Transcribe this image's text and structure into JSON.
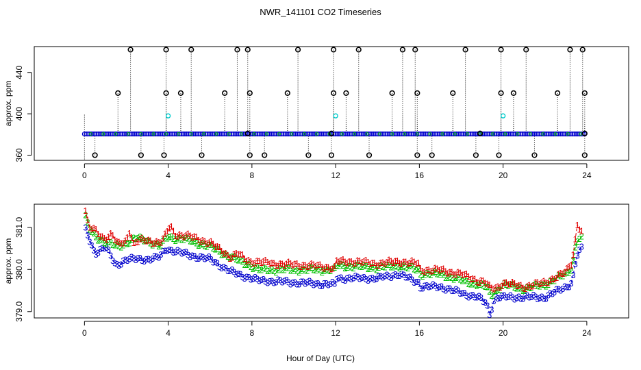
{
  "colors": {
    "series1": "#e00000",
    "series2": "#00c000",
    "series3": "#0000cc",
    "flagged": "#000000",
    "cyan": "#00cccc",
    "frame": "#000000"
  },
  "chart_data": [
    {
      "type": "scatter",
      "title": "NWR_141101  CO2 Timeseries",
      "xlabel": "",
      "ylabel": "approx. ppm",
      "xlim": [
        -2.4,
        26.0
      ],
      "ylim": [
        355,
        465
      ],
      "xticks": [
        0,
        4,
        8,
        12,
        16,
        20,
        24
      ],
      "yticks": [
        360,
        400,
        440
      ],
      "baseline": 380.5,
      "baseline_blue_count": 290,
      "high_flags": [
        {
          "x": 2.2,
          "y": 462
        },
        {
          "x": 3.9,
          "y": 462
        },
        {
          "x": 5.1,
          "y": 462
        },
        {
          "x": 7.3,
          "y": 462
        },
        {
          "x": 7.8,
          "y": 462
        },
        {
          "x": 10.2,
          "y": 462
        },
        {
          "x": 11.9,
          "y": 462
        },
        {
          "x": 13.1,
          "y": 462
        },
        {
          "x": 15.2,
          "y": 462
        },
        {
          "x": 15.8,
          "y": 462
        },
        {
          "x": 18.2,
          "y": 462
        },
        {
          "x": 19.9,
          "y": 462
        },
        {
          "x": 21.1,
          "y": 462
        },
        {
          "x": 23.2,
          "y": 462
        },
        {
          "x": 23.8,
          "y": 462
        },
        {
          "x": 1.6,
          "y": 420
        },
        {
          "x": 3.9,
          "y": 420
        },
        {
          "x": 4.6,
          "y": 420
        },
        {
          "x": 6.7,
          "y": 420
        },
        {
          "x": 7.9,
          "y": 420
        },
        {
          "x": 9.7,
          "y": 420
        },
        {
          "x": 11.9,
          "y": 420
        },
        {
          "x": 12.5,
          "y": 420
        },
        {
          "x": 14.7,
          "y": 420
        },
        {
          "x": 15.9,
          "y": 420
        },
        {
          "x": 17.6,
          "y": 420
        },
        {
          "x": 19.9,
          "y": 420
        },
        {
          "x": 20.5,
          "y": 420
        },
        {
          "x": 22.6,
          "y": 420
        },
        {
          "x": 23.9,
          "y": 420
        }
      ],
      "low_flags": [
        {
          "x": 0.5,
          "y": 360
        },
        {
          "x": 2.7,
          "y": 360
        },
        {
          "x": 3.8,
          "y": 360
        },
        {
          "x": 5.6,
          "y": 360
        },
        {
          "x": 7.9,
          "y": 360
        },
        {
          "x": 8.6,
          "y": 360
        },
        {
          "x": 10.7,
          "y": 360
        },
        {
          "x": 11.8,
          "y": 360
        },
        {
          "x": 13.6,
          "y": 360
        },
        {
          "x": 15.9,
          "y": 360
        },
        {
          "x": 16.6,
          "y": 360
        },
        {
          "x": 18.7,
          "y": 360
        },
        {
          "x": 19.8,
          "y": 360
        },
        {
          "x": 21.5,
          "y": 360
        },
        {
          "x": 23.9,
          "y": 360
        }
      ],
      "mid_flags": [
        {
          "x": 7.8,
          "y": 381
        },
        {
          "x": 11.8,
          "y": 381
        },
        {
          "x": 18.9,
          "y": 381
        },
        {
          "x": 23.9,
          "y": 381
        }
      ],
      "cyan_points": [
        {
          "x": 4.0,
          "y": 398
        },
        {
          "x": 12.0,
          "y": 398
        },
        {
          "x": 20.0,
          "y": 398
        }
      ]
    },
    {
      "type": "line",
      "title": "",
      "xlabel": "Hour of Day (UTC)",
      "ylabel": "approx. ppm",
      "xlim": [
        -2.4,
        26.0
      ],
      "ylim": [
        378.85,
        381.55
      ],
      "xticks": [
        0,
        4,
        8,
        12,
        16,
        20,
        24
      ],
      "yticks": [
        379.0,
        380.0,
        381.0
      ],
      "ytick_labels": [
        "379.0",
        "380.0",
        "381.0"
      ],
      "series": [
        {
          "name": "1",
          "label": "1",
          "anchors": [
            [
              0.05,
              381.4
            ],
            [
              0.2,
              381.0
            ],
            [
              0.5,
              380.95
            ],
            [
              0.8,
              380.8
            ],
            [
              1.0,
              380.75
            ],
            [
              1.3,
              380.85
            ],
            [
              1.6,
              380.6
            ],
            [
              2.0,
              380.7
            ],
            [
              2.2,
              381.0
            ],
            [
              2.3,
              380.6
            ],
            [
              2.6,
              380.7
            ],
            [
              3.0,
              380.7
            ],
            [
              3.6,
              380.65
            ],
            [
              3.8,
              380.75
            ],
            [
              4.1,
              381.05
            ],
            [
              4.3,
              380.85
            ],
            [
              5.0,
              380.8
            ],
            [
              6.0,
              380.65
            ],
            [
              7.0,
              380.3
            ],
            [
              7.3,
              380.4
            ],
            [
              7.7,
              380.25
            ],
            [
              7.95,
              380.2
            ],
            [
              8.3,
              380.2
            ],
            [
              9.0,
              380.15
            ],
            [
              11.0,
              380.1
            ],
            [
              11.95,
              380.05
            ],
            [
              12.05,
              380.2
            ],
            [
              13.0,
              380.2
            ],
            [
              14.0,
              380.15
            ],
            [
              15.0,
              380.2
            ],
            [
              15.95,
              380.15
            ],
            [
              16.05,
              380.0
            ],
            [
              17.0,
              380.0
            ],
            [
              18.0,
              379.9
            ],
            [
              18.8,
              379.75
            ],
            [
              19.2,
              379.7
            ],
            [
              19.4,
              379.55
            ],
            [
              19.8,
              379.6
            ],
            [
              20.0,
              379.7
            ],
            [
              21.0,
              379.6
            ],
            [
              22.0,
              379.7
            ],
            [
              23.0,
              379.95
            ],
            [
              23.3,
              380.2
            ],
            [
              23.5,
              380.9
            ],
            [
              23.55,
              381.1
            ],
            [
              23.8,
              380.85
            ]
          ]
        },
        {
          "name": "2",
          "label": "2",
          "anchors": [
            [
              0.05,
              381.25
            ],
            [
              0.2,
              381.0
            ],
            [
              0.5,
              380.8
            ],
            [
              1.0,
              380.65
            ],
            [
              1.6,
              380.55
            ],
            [
              2.5,
              380.75
            ],
            [
              3.0,
              380.7
            ],
            [
              3.6,
              380.55
            ],
            [
              4.0,
              380.8
            ],
            [
              4.3,
              380.75
            ],
            [
              5.0,
              380.7
            ],
            [
              6.0,
              380.55
            ],
            [
              7.0,
              380.3
            ],
            [
              7.95,
              380.1
            ],
            [
              8.3,
              380.0
            ],
            [
              10.0,
              380.0
            ],
            [
              11.95,
              380.0
            ],
            [
              12.05,
              380.1
            ],
            [
              14.0,
              380.05
            ],
            [
              15.0,
              380.1
            ],
            [
              15.95,
              380.0
            ],
            [
              16.05,
              379.9
            ],
            [
              17.0,
              379.9
            ],
            [
              18.0,
              379.75
            ],
            [
              18.8,
              379.65
            ],
            [
              19.2,
              379.6
            ],
            [
              19.4,
              379.4
            ],
            [
              19.8,
              379.55
            ],
            [
              20.0,
              379.65
            ],
            [
              21.0,
              379.55
            ],
            [
              22.0,
              379.65
            ],
            [
              23.0,
              379.9
            ],
            [
              23.3,
              380.05
            ],
            [
              23.5,
              380.7
            ],
            [
              23.8,
              380.75
            ]
          ]
        },
        {
          "name": "3",
          "label": "3",
          "anchors": [
            [
              0.05,
              380.95
            ],
            [
              0.2,
              380.75
            ],
            [
              0.5,
              380.4
            ],
            [
              1.0,
              380.55
            ],
            [
              1.5,
              380.1
            ],
            [
              2.0,
              380.25
            ],
            [
              3.0,
              380.25
            ],
            [
              3.6,
              380.3
            ],
            [
              3.9,
              380.5
            ],
            [
              4.3,
              380.45
            ],
            [
              5.0,
              380.35
            ],
            [
              6.0,
              380.25
            ],
            [
              7.0,
              379.95
            ],
            [
              7.95,
              379.8
            ],
            [
              8.3,
              379.75
            ],
            [
              10.0,
              379.7
            ],
            [
              11.95,
              379.65
            ],
            [
              12.05,
              379.8
            ],
            [
              14.0,
              379.8
            ],
            [
              15.0,
              379.9
            ],
            [
              15.95,
              379.7
            ],
            [
              16.05,
              379.6
            ],
            [
              17.0,
              379.6
            ],
            [
              18.0,
              379.45
            ],
            [
              18.8,
              379.35
            ],
            [
              19.2,
              379.2
            ],
            [
              19.35,
              378.95
            ],
            [
              19.6,
              379.35
            ],
            [
              20.0,
              379.35
            ],
            [
              21.0,
              379.35
            ],
            [
              22.0,
              379.35
            ],
            [
              23.0,
              379.6
            ],
            [
              23.3,
              379.7
            ],
            [
              23.5,
              380.3
            ],
            [
              23.8,
              380.55
            ]
          ]
        }
      ]
    }
  ]
}
